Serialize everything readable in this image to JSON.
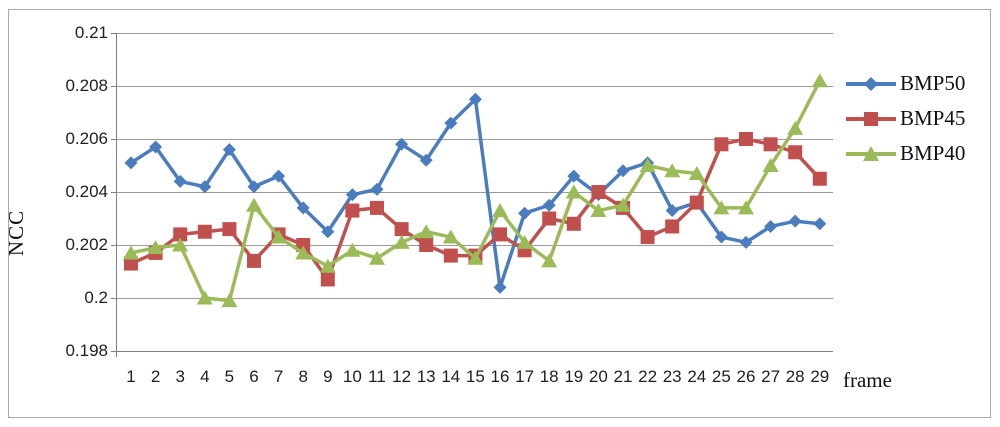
{
  "chart_data": {
    "type": "line",
    "title": "",
    "xlabel": "frame",
    "ylabel": "NCC",
    "x_tick_labels": [
      "1",
      "2",
      "3",
      "4",
      "5",
      "6",
      "7",
      "8",
      "9",
      "10",
      "11",
      "12",
      "13",
      "14",
      "15",
      "16",
      "17",
      "18",
      "19",
      "20",
      "21",
      "22",
      "23",
      "24",
      "25",
      "26",
      "27",
      "28",
      "29"
    ],
    "y_tick_labels": [
      "0.21",
      "0.208",
      "0.206",
      "0.204",
      "0.202",
      "0.2",
      "0.198"
    ],
    "y_tick_values": [
      0.21,
      0.208,
      0.206,
      0.204,
      0.202,
      0.2,
      0.198
    ],
    "ylim": [
      0.198,
      0.21
    ],
    "grid": true,
    "legend_position": "right",
    "series": [
      {
        "name": "BMP50",
        "marker": "diamond",
        "color": "#4A7CBE",
        "values": [
          0.2051,
          0.2057,
          0.2044,
          0.2042,
          0.2056,
          0.2042,
          0.2046,
          0.2034,
          0.2025,
          0.2039,
          0.2041,
          0.2058,
          0.2052,
          0.2066,
          0.2075,
          0.2004,
          0.2032,
          0.2035,
          0.2046,
          0.2039,
          0.2048,
          0.2051,
          0.2033,
          0.2036,
          0.2023,
          0.2021,
          0.2027,
          0.2029,
          0.2028
        ]
      },
      {
        "name": "BMP45",
        "marker": "square",
        "color": "#C0504D",
        "values": [
          0.2013,
          0.2017,
          0.2024,
          0.2025,
          0.2026,
          0.2014,
          0.2024,
          0.202,
          0.2007,
          0.2033,
          0.2034,
          0.2026,
          0.202,
          0.2016,
          0.2016,
          0.2024,
          0.2018,
          0.203,
          0.2028,
          0.204,
          0.2034,
          0.2023,
          0.2027,
          0.2036,
          0.2058,
          0.206,
          0.2058,
          0.2055,
          0.2045
        ]
      },
      {
        "name": "BMP40",
        "marker": "triangle",
        "color": "#9BBB59",
        "values": [
          0.2017,
          0.2019,
          0.202,
          0.2,
          0.1999,
          0.2035,
          0.2023,
          0.2017,
          0.2012,
          0.2018,
          0.2015,
          0.2021,
          0.2025,
          0.2023,
          0.2015,
          0.2033,
          0.2021,
          0.2014,
          0.204,
          0.2033,
          0.2035,
          0.205,
          0.2048,
          0.2047,
          0.2034,
          0.2034,
          0.205,
          0.2064,
          0.2082
        ]
      }
    ],
    "colors": {
      "gridline": "#9a9a9a",
      "axis": "#808080",
      "border": "#a9a9a9",
      "tick_text": "#1f1f1f"
    }
  }
}
